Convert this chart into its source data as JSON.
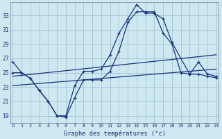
{
  "background_color": "#cde8f0",
  "grid_color": "#a8c8d8",
  "line_color": "#1a3080",
  "title": "Graphe des températures (°c)",
  "ylabel_ticks": [
    19,
    21,
    23,
    25,
    27,
    29,
    31,
    33
  ],
  "xlabel_ticks": [
    0,
    1,
    2,
    3,
    4,
    5,
    6,
    7,
    8,
    9,
    10,
    11,
    12,
    13,
    14,
    15,
    16,
    17,
    18,
    19,
    20,
    21,
    22,
    23
  ],
  "xlim": [
    -0.3,
    23.3
  ],
  "ylim": [
    18.0,
    34.8
  ],
  "curve1_x": [
    0,
    1,
    2,
    3,
    4,
    5,
    6,
    7,
    8,
    9,
    10,
    11,
    12,
    13,
    14,
    15,
    16,
    17,
    18,
    20,
    21,
    22,
    23
  ],
  "curve1_y": [
    26.5,
    25.0,
    24.2,
    22.5,
    21.0,
    19.0,
    19.0,
    23.2,
    25.2,
    25.2,
    25.5,
    27.5,
    30.5,
    32.5,
    34.5,
    33.3,
    33.3,
    32.5,
    29.2,
    24.8,
    26.5,
    24.8,
    24.5
  ],
  "curve2_x": [
    0,
    1,
    2,
    3,
    4,
    5,
    6,
    7,
    8,
    9,
    10,
    11,
    12,
    13,
    14,
    15,
    16,
    17,
    18,
    19,
    20,
    21,
    22,
    23
  ],
  "curve2_y": [
    25.0,
    25.0,
    24.2,
    22.5,
    21.0,
    19.0,
    18.8,
    21.5,
    24.0,
    24.0,
    24.0,
    25.2,
    28.0,
    32.0,
    33.5,
    33.5,
    33.5,
    30.5,
    29.0,
    25.0,
    24.8,
    24.8,
    24.5,
    24.3
  ],
  "line3_x": [
    0,
    23
  ],
  "line3_y": [
    24.5,
    27.5
  ],
  "line4_x": [
    0,
    23
  ],
  "line4_y": [
    23.2,
    25.5
  ]
}
